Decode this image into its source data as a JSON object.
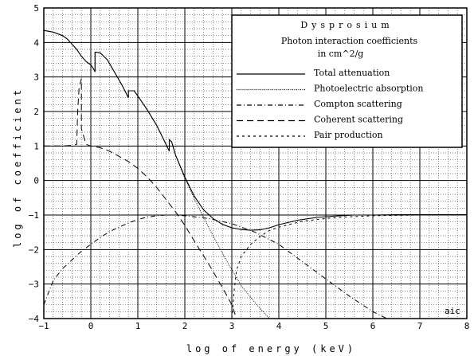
{
  "chart_data": {
    "type": "line",
    "title": "Dysprosium",
    "subtitle_line1": "Photon interaction coefficients",
    "subtitle_line2": "in cm^2/g",
    "xlabel": "log of energy (keV)",
    "ylabel": "log of coefficient",
    "corner_mark": "aic",
    "xlim": [
      -1,
      8
    ],
    "ylim": [
      -4,
      5
    ],
    "x_ticks": [
      -1,
      0,
      1,
      2,
      3,
      4,
      5,
      6,
      7,
      8
    ],
    "y_ticks": [
      -4,
      -3,
      -2,
      -1,
      0,
      1,
      2,
      3,
      4,
      5
    ],
    "grid": "major solid, minor dotted",
    "legend_position": "top-right",
    "series": [
      {
        "name": "Total attenuation",
        "style": "solid",
        "x": [
          -1,
          -0.8,
          -0.6,
          -0.5,
          -0.4,
          -0.3,
          -0.2,
          -0.1,
          0.0,
          0.05,
          0.09,
          0.09,
          0.2,
          0.35,
          0.5,
          0.65,
          0.8,
          0.8,
          0.92,
          1.0,
          1.2,
          1.4,
          1.6,
          1.67,
          1.67,
          1.72,
          1.8,
          2.0,
          2.2,
          2.4,
          2.6,
          2.8,
          3.0,
          3.2,
          3.4,
          3.6,
          3.8,
          4.0,
          4.4,
          4.8,
          5.2,
          5.6,
          6.0,
          6.5,
          7.0,
          7.5,
          8.0
        ],
        "y": [
          4.35,
          4.3,
          4.2,
          4.1,
          3.95,
          3.8,
          3.6,
          3.45,
          3.35,
          3.25,
          3.15,
          3.72,
          3.7,
          3.5,
          3.15,
          2.8,
          2.4,
          2.6,
          2.6,
          2.45,
          2.05,
          1.6,
          1.05,
          0.85,
          1.18,
          1.12,
          0.75,
          0.1,
          -0.45,
          -0.85,
          -1.1,
          -1.27,
          -1.37,
          -1.42,
          -1.44,
          -1.43,
          -1.37,
          -1.28,
          -1.15,
          -1.07,
          -1.03,
          -1.0,
          -1.0,
          -0.99,
          -0.99,
          -0.99,
          -0.99
        ]
      },
      {
        "name": "Photoelectric absorption",
        "style": "dotted",
        "x": [
          -1,
          -0.8,
          -0.6,
          -0.5,
          -0.4,
          -0.3,
          -0.2,
          -0.1,
          0.0,
          0.05,
          0.09,
          0.09,
          0.2,
          0.35,
          0.5,
          0.65,
          0.8,
          0.8,
          0.92,
          1.0,
          1.2,
          1.4,
          1.6,
          1.67,
          1.67,
          1.72,
          1.8,
          2.0,
          2.3,
          2.6,
          2.9,
          3.2,
          3.5,
          3.8,
          4.0
        ],
        "y": [
          4.35,
          4.3,
          4.2,
          4.1,
          3.95,
          3.8,
          3.6,
          3.45,
          3.35,
          3.25,
          3.15,
          3.72,
          3.7,
          3.5,
          3.15,
          2.8,
          2.4,
          2.6,
          2.6,
          2.45,
          2.05,
          1.6,
          1.05,
          0.85,
          1.18,
          1.12,
          0.75,
          0.05,
          -0.8,
          -1.6,
          -2.35,
          -3.05,
          -3.55,
          -4.0,
          -4.0
        ]
      },
      {
        "name": "Compton scattering",
        "style": "dash-dot",
        "x": [
          -1,
          -0.8,
          -0.6,
          -0.4,
          -0.2,
          0.0,
          0.2,
          0.4,
          0.6,
          0.8,
          1.0,
          1.2,
          1.4,
          1.6,
          1.8,
          2.0,
          2.5,
          3.0,
          3.5,
          4.0,
          4.5,
          5.0,
          5.5,
          6.0,
          6.3
        ],
        "y": [
          -3.6,
          -2.9,
          -2.55,
          -2.3,
          -2.05,
          -1.85,
          -1.65,
          -1.48,
          -1.35,
          -1.23,
          -1.13,
          -1.06,
          -1.02,
          -1.0,
          -1.0,
          -1.02,
          -1.1,
          -1.25,
          -1.5,
          -1.85,
          -2.35,
          -2.85,
          -3.35,
          -3.8,
          -4.0
        ]
      },
      {
        "name": "Coherent scattering",
        "style": "long-dash",
        "x": [
          -1,
          -0.6,
          -0.4,
          -0.3,
          -0.28,
          -0.25,
          -0.2,
          -0.2,
          -0.1,
          0.0,
          0.2,
          0.4,
          0.6,
          0.8,
          1.0,
          1.2,
          1.4,
          1.6,
          1.8,
          2.0,
          2.2,
          2.5,
          2.8,
          3.0,
          3.1
        ],
        "y": [
          1.0,
          1.0,
          1.02,
          1.05,
          2.0,
          2.7,
          2.95,
          1.5,
          1.05,
          1.0,
          0.95,
          0.85,
          0.7,
          0.55,
          0.35,
          0.1,
          -0.2,
          -0.55,
          -0.9,
          -1.3,
          -1.75,
          -2.4,
          -3.1,
          -3.6,
          -4.0
        ]
      },
      {
        "name": "Pair production",
        "style": "short-dash",
        "x": [
          3.0,
          3.05,
          3.1,
          3.2,
          3.4,
          3.6,
          3.8,
          4.0,
          4.5,
          5.0,
          5.5,
          6.0,
          6.5,
          7.0,
          7.5,
          8.0
        ],
        "y": [
          -4.0,
          -3.2,
          -2.6,
          -2.2,
          -1.85,
          -1.62,
          -1.45,
          -1.35,
          -1.18,
          -1.1,
          -1.05,
          -1.02,
          -1.01,
          -1.0,
          -1.0,
          -1.0
        ]
      }
    ]
  }
}
